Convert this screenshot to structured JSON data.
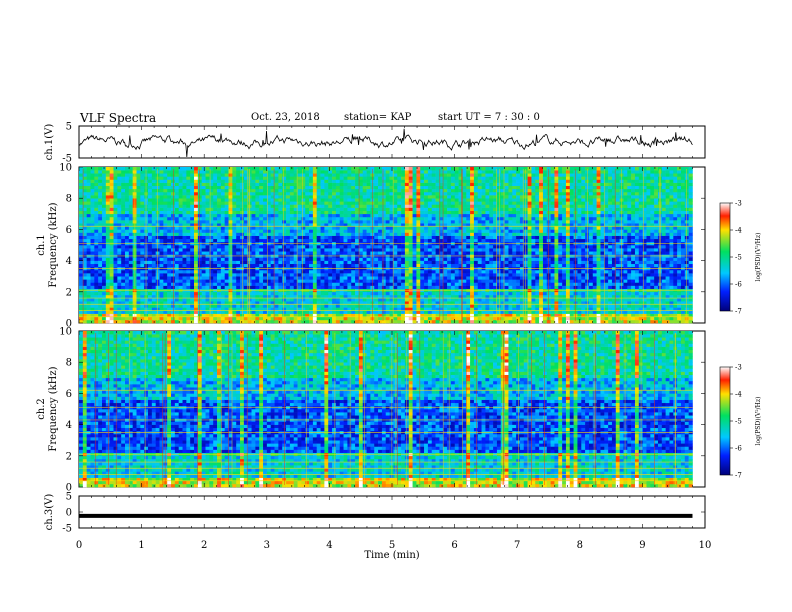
{
  "header": {
    "title": "VLF Spectra",
    "date": "Oct. 23, 2018",
    "station": "station= KAP",
    "start_time": "start UT =  7 : 30 : 0"
  },
  "chart_data": [
    {
      "type": "line",
      "panel": "ch1-waveform",
      "ylabel": "ch.1(V)",
      "ylim": [
        -5,
        5
      ],
      "y_ticks": [
        "5",
        "-5"
      ],
      "xlim": [
        0,
        10
      ],
      "series": [
        {
          "color": "#000000"
        }
      ]
    },
    {
      "type": "heatmap",
      "panel": "ch1-spectrogram",
      "ylabel_top": "ch.1",
      "ylabel": "Frequency (kHz)",
      "xlim": [
        0,
        10
      ],
      "ylim": [
        0,
        10
      ],
      "y_ticks": [
        "0",
        "2",
        "4",
        "6",
        "8",
        "10"
      ],
      "data_end_min": 9.8,
      "colorbar": {
        "label": "log(PSD)(V²/Hz)",
        "range": [
          -7,
          -3
        ],
        "ticks": [
          "-3",
          "-4",
          "-5",
          "-6",
          "-7"
        ]
      }
    },
    {
      "type": "heatmap",
      "panel": "ch2-spectrogram",
      "ylabel_top": "ch.2",
      "ylabel": "Frequency (kHz)",
      "xlim": [
        0,
        10
      ],
      "ylim": [
        0,
        10
      ],
      "y_ticks": [
        "0",
        "2",
        "4",
        "6",
        "8",
        "10"
      ],
      "data_end_min": 9.8,
      "colorbar": {
        "label": "log(PSD)(V²/Hz)",
        "range": [
          -7,
          -3
        ],
        "ticks": [
          "-3",
          "-4",
          "-5",
          "-6",
          "-7"
        ]
      }
    },
    {
      "type": "line",
      "panel": "ch3-waveform",
      "ylabel": "ch.3(V)",
      "ylim": [
        -5,
        5
      ],
      "y_ticks": [
        "5",
        "0",
        "-5"
      ],
      "xlim": [
        0,
        10
      ],
      "constant_value": -1.2,
      "series": [
        {
          "color": "#000000"
        }
      ]
    }
  ],
  "x_axis": {
    "label": "Time (min)",
    "ticks": [
      "0",
      "1",
      "2",
      "3",
      "4",
      "5",
      "6",
      "7",
      "8",
      "9",
      "10"
    ]
  }
}
